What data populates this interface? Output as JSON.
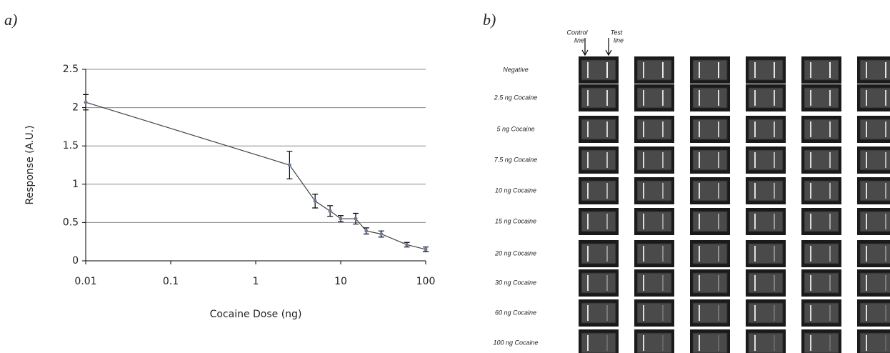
{
  "chart_data": {
    "type": "line",
    "panel_label": "a)",
    "x_label": "Cocaine Dose (ng)",
    "y_label": "Response (A.U.)",
    "x": [
      0.01,
      2.5,
      5,
      7.5,
      10,
      15,
      20,
      30,
      60,
      100
    ],
    "series": [
      {
        "color": "#444444",
        "values": [
          2.07,
          1.25,
          0.78,
          0.65,
          0.55,
          0.55,
          0.39,
          0.35,
          0.21,
          0.15
        ],
        "errors": [
          0.1,
          0.18,
          0.09,
          0.07,
          0.04,
          0.07,
          0.04,
          0.04,
          0.03,
          0.03
        ]
      }
    ],
    "xlim": [
      0.01,
      100
    ],
    "xticks": [
      0.01,
      0.1,
      1,
      10,
      100
    ],
    "x_log": true,
    "ylim": [
      0,
      2.5
    ],
    "yticks": [
      0,
      0.5,
      1,
      1.5,
      2,
      2.5
    ],
    "grid": true
  },
  "panel_b": {
    "panel_label": "b)",
    "control_label": [
      "Control",
      "line"
    ],
    "test_label": [
      "Test",
      "line"
    ],
    "rows": [
      "Negative",
      "2.5 ng  Cocaine",
      "5 ng  Cocaine",
      "7.5 ng  Cocaine",
      "10 ng  Cocaine",
      "15 ng  Cocaine",
      "20 ng  Cocaine",
      "30 ng  Cocaine",
      "60 ng  Cocaine",
      "100 ng  Cocaine"
    ]
  }
}
